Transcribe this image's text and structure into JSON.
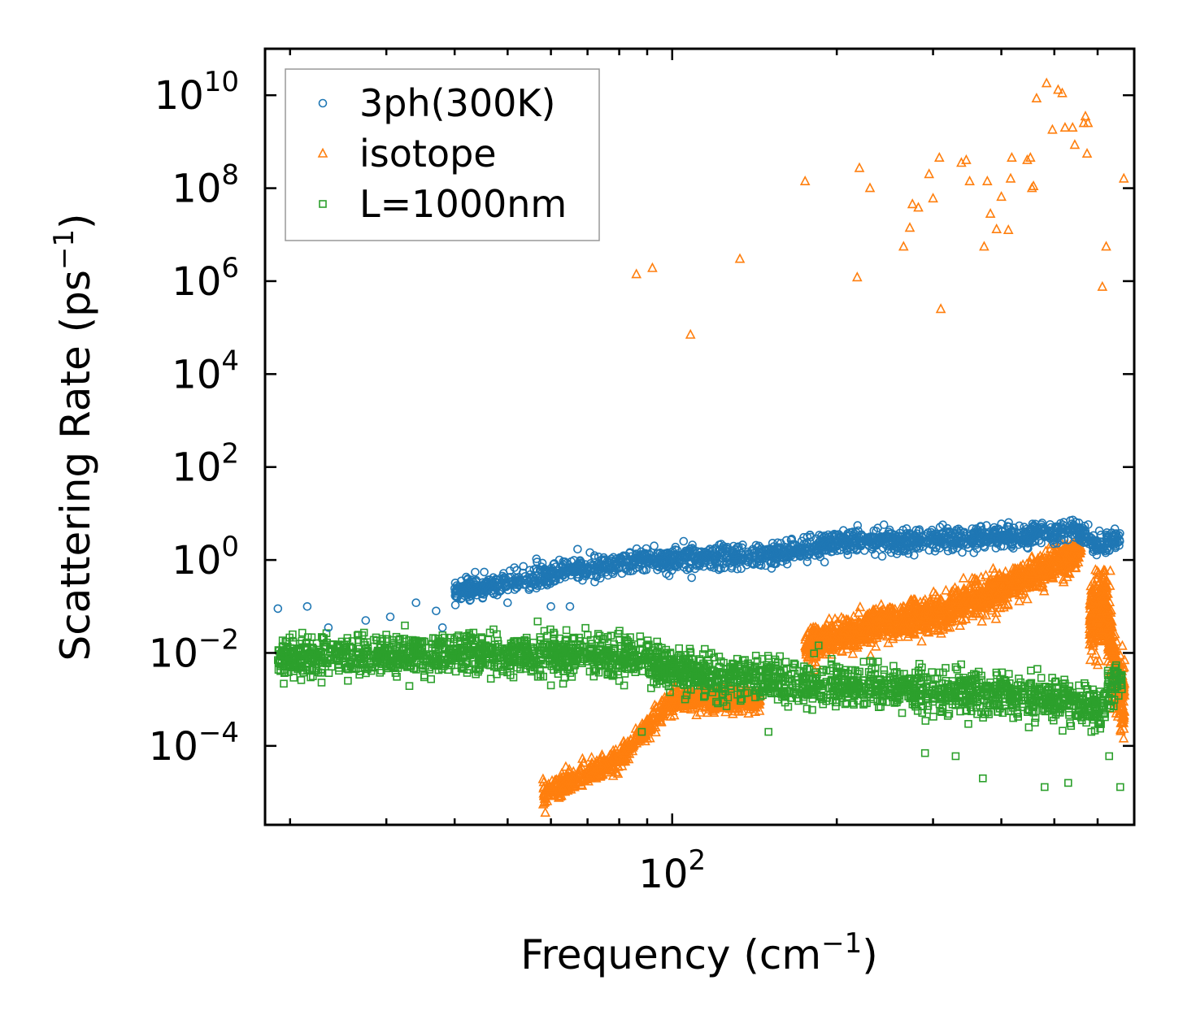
{
  "chart_data": {
    "type": "scatter",
    "title": "",
    "xlabel": "Frequency (cm",
    "xlabel_sup": "−1",
    "xlabel_end": ")",
    "ylabel": "Scattering Rate (ps",
    "ylabel_sup": "−1",
    "ylabel_end": ")",
    "xscale": "log",
    "yscale": "log",
    "xlim": [
      18,
      700
    ],
    "ylim": [
      2e-06,
      100000000000.0
    ],
    "x_tick_labels": [
      {
        "base": "10",
        "exp": "2",
        "value": 100
      }
    ],
    "y_tick_labels": [
      {
        "base": "10",
        "exp": "10",
        "value": 10000000000.0
      },
      {
        "base": "10",
        "exp": "8",
        "value": 100000000.0
      },
      {
        "base": "10",
        "exp": "6",
        "value": 1000000.0
      },
      {
        "base": "10",
        "exp": "4",
        "value": 10000.0
      },
      {
        "base": "10",
        "exp": "2",
        "value": 100
      },
      {
        "base": "10",
        "exp": "0",
        "value": 1
      },
      {
        "base": "10",
        "exp": "−2",
        "value": 0.01
      },
      {
        "base": "10",
        "exp": "−4",
        "value": 0.0001
      }
    ],
    "legend_position": "top-left",
    "series": [
      {
        "name": "3ph(300K)",
        "color": "#1f77b4",
        "marker": "circle",
        "trend": [
          [
            19,
            0.09
          ],
          [
            30,
            0.12
          ],
          [
            40,
            0.2
          ],
          [
            55,
            0.4
          ],
          [
            70,
            0.7
          ],
          [
            90,
            1.0
          ],
          [
            120,
            1.1
          ],
          [
            160,
            1.3
          ],
          [
            200,
            2.5
          ],
          [
            300,
            2.7
          ],
          [
            450,
            3.5
          ],
          [
            550,
            4.5
          ],
          [
            600,
            2.0
          ],
          [
            660,
            3.0
          ]
        ],
        "outliers": [
          [
            19,
            0.09
          ],
          [
            21.5,
            0.1
          ],
          [
            23.5,
            0.035
          ],
          [
            27.5,
            0.05
          ],
          [
            30.5,
            0.06
          ],
          [
            34,
            0.12
          ],
          [
            37,
            0.08
          ],
          [
            38,
            0.035
          ],
          [
            45,
            0.15
          ],
          [
            50,
            0.12
          ],
          [
            60,
            0.1
          ],
          [
            65,
            0.1
          ],
          [
            190,
            0.9
          ],
          [
            400,
            6
          ]
        ]
      },
      {
        "name": "isotope",
        "color": "#ff7f0e",
        "marker": "triangle",
        "points": [
          [
            86,
            1400000.0
          ],
          [
            92,
            1900000.0
          ],
          [
            108,
            70000.0
          ],
          [
            133,
            3000000.0
          ],
          [
            175,
            140000000.0
          ],
          [
            218,
            1200000.0
          ],
          [
            220,
            270000000.0
          ],
          [
            230,
            100000000.0
          ],
          [
            265,
            5500000.0
          ],
          [
            272,
            14000000.0
          ],
          [
            275,
            45000000.0
          ],
          [
            282,
            38000000.0
          ],
          [
            295,
            200000000.0
          ],
          [
            300,
            60000000.0
          ],
          [
            308,
            450000000.0
          ],
          [
            310,
            250000.0
          ],
          [
            338,
            350000000.0
          ],
          [
            345,
            400000000.0
          ],
          [
            350,
            140000000.0
          ],
          [
            372,
            5500000.0
          ],
          [
            377,
            140000000.0
          ],
          [
            382,
            28000000.0
          ],
          [
            392,
            13000000.0
          ],
          [
            400,
            65000000.0
          ],
          [
            412,
            12500000.0
          ],
          [
            416,
            160000000.0
          ],
          [
            418,
            450000000.0
          ],
          [
            446,
            400000000.0
          ],
          [
            452,
            450000000.0
          ],
          [
            455,
            100000000.0
          ],
          [
            458,
            110000000.0
          ],
          [
            464,
            8500000000.0
          ],
          [
            484,
            18000000000.0
          ],
          [
            496,
            1800000000.0
          ],
          [
            508,
            13000000000.0
          ],
          [
            517,
            11000000000.0
          ],
          [
            523,
            2000000000.0
          ],
          [
            540,
            2000000000.0
          ],
          [
            545,
            850000000.0
          ],
          [
            566,
            2500000000.0
          ],
          [
            570,
            3500000000.0
          ],
          [
            574,
            550000000.0
          ],
          [
            576,
            2500000000.0
          ],
          [
            612,
            750000.0
          ],
          [
            622,
            5500000.0
          ],
          [
            670,
            160000000.0
          ]
        ],
        "lower_band": [
          [
            58,
            9e-06
          ],
          [
            80,
            5e-05
          ],
          [
            100,
            0.001
          ],
          [
            140,
            0.001
          ]
        ],
        "upper_band": [
          [
            175,
            0.015
          ],
          [
            240,
            0.04
          ],
          [
            320,
            0.08
          ],
          [
            420,
            0.3
          ],
          [
            560,
            1.5
          ]
        ],
        "tail": [
          [
            580,
            0.05
          ],
          [
            620,
            0.1
          ],
          [
            650,
            0.003
          ],
          [
            670,
            0.001
          ]
        ]
      },
      {
        "name": "L=1000nm",
        "color": "#2ca02c",
        "marker": "square",
        "trend": [
          [
            19,
            0.008
          ],
          [
            40,
            0.01
          ],
          [
            80,
            0.008
          ],
          [
            120,
            0.003
          ],
          [
            200,
            0.002
          ],
          [
            300,
            0.0015
          ],
          [
            450,
            0.0012
          ],
          [
            560,
            0.0008
          ],
          [
            600,
            0.0005
          ],
          [
            650,
            0.003
          ]
        ],
        "outliers": [
          [
            19,
            0.007
          ],
          [
            20,
            0.01
          ],
          [
            21.5,
            0.005
          ],
          [
            60,
            0.002
          ],
          [
            80,
            0.0025
          ],
          [
            88,
            0.0002
          ],
          [
            150,
            0.0002
          ],
          [
            290,
            7e-05
          ],
          [
            330,
            6e-05
          ],
          [
            370,
            2e-05
          ],
          [
            480,
            1.3e-05
          ],
          [
            530,
            1.6e-05
          ],
          [
            630,
            6e-05
          ],
          [
            660,
            1.3e-05
          ]
        ]
      }
    ]
  }
}
